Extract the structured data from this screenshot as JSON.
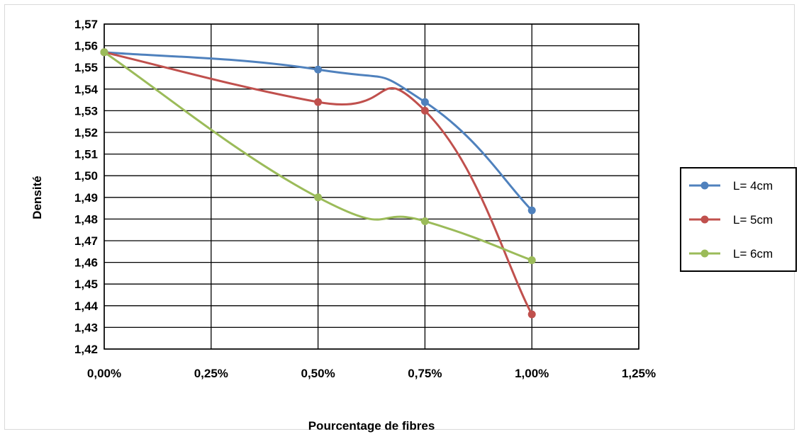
{
  "chart_data": {
    "type": "line",
    "title": "",
    "xlabel": "Pourcentage de fibres",
    "ylabel": "Densité",
    "x": [
      0,
      0.5,
      0.75,
      1.0
    ],
    "x_tick_values": [
      0,
      0.25,
      0.5,
      0.75,
      1.0,
      1.25
    ],
    "x_tick_labels": [
      "0,00%",
      "0,25%",
      "0,50%",
      "0,75%",
      "1,00%",
      "1,25%"
    ],
    "xlim": [
      0,
      1.25
    ],
    "ylim": [
      1.42,
      1.57
    ],
    "y_tick_values": [
      1.42,
      1.43,
      1.44,
      1.45,
      1.46,
      1.47,
      1.48,
      1.49,
      1.5,
      1.51,
      1.52,
      1.53,
      1.54,
      1.55,
      1.56,
      1.57
    ],
    "y_tick_labels": [
      "1,42",
      "1,43",
      "1,44",
      "1,45",
      "1,46",
      "1,47",
      "1,48",
      "1,49",
      "1,50",
      "1,51",
      "1,52",
      "1,53",
      "1,54",
      "1,55",
      "1,56",
      "1,57"
    ],
    "grid": true,
    "smooth": true,
    "legend_position": "right",
    "series": [
      {
        "name": "L= 4cm",
        "color": "#4f81bd",
        "values": [
          1.557,
          1.549,
          1.534,
          1.484
        ]
      },
      {
        "name": "L= 5cm",
        "color": "#c0504d",
        "values": [
          1.557,
          1.534,
          1.53,
          1.436
        ]
      },
      {
        "name": "L= 6cm",
        "color": "#9bbb59",
        "values": [
          1.557,
          1.49,
          1.479,
          1.461
        ]
      }
    ]
  }
}
